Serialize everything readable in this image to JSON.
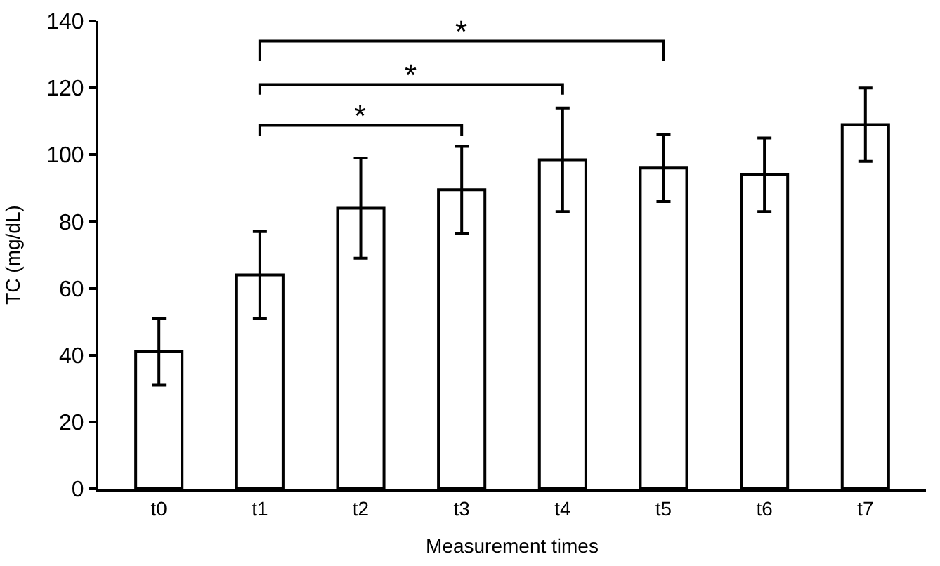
{
  "chart_data": {
    "type": "bar",
    "xlabel": "Measurement times",
    "ylabel": "TC (mg/dL)",
    "categories": [
      "t0",
      "t1",
      "t2",
      "t3",
      "t4",
      "t5",
      "t6",
      "t7"
    ],
    "values": [
      41,
      64,
      84,
      89.5,
      98.5,
      96,
      94,
      109
    ],
    "errors": [
      10,
      13,
      15,
      13,
      15.5,
      10,
      11,
      11
    ],
    "color": "#ffffff",
    "ylim": [
      0,
      140
    ],
    "yticks": [
      0,
      20,
      40,
      60,
      80,
      100,
      120,
      140
    ],
    "annotations": [
      "*",
      "*",
      "*"
    ]
  }
}
